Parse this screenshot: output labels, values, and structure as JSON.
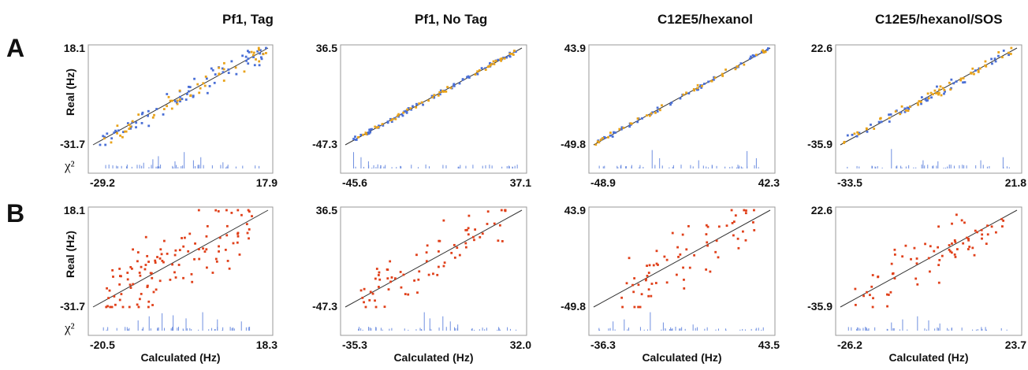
{
  "figure": {
    "panel_titles": [
      "Pf1, Tag",
      "Pf1, No Tag",
      "C12E5/hexanol",
      "C12E5/hexanol/SOS"
    ],
    "row_labels": [
      "A",
      "B"
    ],
    "ylabel": "Real (Hz)",
    "xlabel": "Calculated (Hz)",
    "chi_label": "χ²",
    "chi_superscript": "2",
    "colors": {
      "blue": "#4a6fd6",
      "orange": "#e8a21a",
      "red": "#e0401a",
      "line": "#333333",
      "frame": "#999999",
      "chi": "#6f8fe0"
    }
  },
  "chart_data": [
    {
      "type": "scatter",
      "row": "A",
      "title": "Pf1, Tag",
      "xlim": [
        -29.2,
        17.9
      ],
      "ylim": [
        -31.7,
        18.1
      ],
      "xticks": [
        "-29.2",
        "17.9"
      ],
      "yticks": [
        "18.1",
        "-31.7"
      ],
      "spread": 0.05,
      "series": [
        {
          "color": "blue",
          "count": 70
        },
        {
          "color": "orange",
          "count": 50
        }
      ],
      "chi_bars": [
        {
          "p": 0.3,
          "h": 0.28
        },
        {
          "p": 0.35,
          "h": 0.45
        },
        {
          "p": 0.38,
          "h": 0.6
        },
        {
          "p": 0.47,
          "h": 0.35
        },
        {
          "p": 0.52,
          "h": 0.8
        },
        {
          "p": 0.57,
          "h": 0.4
        },
        {
          "p": 0.61,
          "h": 0.55
        },
        {
          "p": 0.73,
          "h": 0.3
        }
      ]
    },
    {
      "type": "scatter",
      "row": "A",
      "title": "Pf1, No Tag",
      "xlim": [
        -45.6,
        37.1
      ],
      "ylim": [
        -47.3,
        36.5
      ],
      "xticks": [
        "-45.6",
        "37.1"
      ],
      "yticks": [
        "36.5",
        "-47.3"
      ],
      "spread": 0.012,
      "series": [
        {
          "color": "blue",
          "count": 70
        },
        {
          "color": "orange",
          "count": 50
        }
      ],
      "chi_bars": [
        {
          "p": 0.07,
          "h": 0.8
        },
        {
          "p": 0.11,
          "h": 0.55
        },
        {
          "p": 0.15,
          "h": 0.35
        },
        {
          "p": 0.2,
          "h": 0.2
        }
      ]
    },
    {
      "type": "scatter",
      "row": "A",
      "title": "C12E5/hexanol",
      "xlim": [
        -48.9,
        42.3
      ],
      "ylim": [
        -49.8,
        43.9
      ],
      "xticks": [
        "-48.9",
        "42.3"
      ],
      "yticks": [
        "43.9",
        "-49.8"
      ],
      "spread": 0.012,
      "series": [
        {
          "color": "blue",
          "count": 50
        },
        {
          "color": "orange",
          "count": 40
        }
      ],
      "chi_bars": [
        {
          "p": 0.34,
          "h": 0.9
        },
        {
          "p": 0.38,
          "h": 0.5
        },
        {
          "p": 0.59,
          "h": 0.4
        },
        {
          "p": 0.85,
          "h": 0.85
        },
        {
          "p": 0.9,
          "h": 0.5
        }
      ]
    },
    {
      "type": "scatter",
      "row": "A",
      "title": "C12E5/hexanol/SOS",
      "xlim": [
        -33.5,
        21.8
      ],
      "ylim": [
        -35.9,
        22.6
      ],
      "xticks": [
        "-33.5",
        "21.8"
      ],
      "yticks": [
        "22.6",
        "-35.9"
      ],
      "spread": 0.03,
      "series": [
        {
          "color": "blue",
          "count": 45
        },
        {
          "color": "orange",
          "count": 55
        }
      ],
      "chi_bars": [
        {
          "p": 0.3,
          "h": 0.95
        },
        {
          "p": 0.47,
          "h": 0.4
        },
        {
          "p": 0.55,
          "h": 0.35
        },
        {
          "p": 0.78,
          "h": 0.4
        },
        {
          "p": 0.9,
          "h": 0.55
        }
      ]
    },
    {
      "type": "scatter",
      "row": "B",
      "title": "",
      "xlim": [
        -20.5,
        18.3
      ],
      "ylim": [
        -31.7,
        18.1
      ],
      "xticks": [
        "-20.5",
        "18.3"
      ],
      "yticks": [
        "18.1",
        "-31.7"
      ],
      "spread": 0.17,
      "series": [
        {
          "color": "red",
          "count": 120
        }
      ],
      "chi_bars": [
        {
          "p": 0.27,
          "h": 0.5
        },
        {
          "p": 0.33,
          "h": 0.7
        },
        {
          "p": 0.4,
          "h": 0.85
        },
        {
          "p": 0.46,
          "h": 0.75
        },
        {
          "p": 0.53,
          "h": 0.6
        },
        {
          "p": 0.62,
          "h": 0.9
        },
        {
          "p": 0.7,
          "h": 0.55
        },
        {
          "p": 0.83,
          "h": 0.45
        }
      ]
    },
    {
      "type": "scatter",
      "row": "B",
      "title": "",
      "xlim": [
        -35.3,
        32.0
      ],
      "ylim": [
        -47.3,
        36.5
      ],
      "xticks": [
        "-35.3",
        "32.0"
      ],
      "yticks": [
        "36.5",
        "-47.3"
      ],
      "spread": 0.13,
      "series": [
        {
          "color": "red",
          "count": 75
        }
      ],
      "chi_bars": [
        {
          "p": 0.45,
          "h": 0.9
        },
        {
          "p": 0.48,
          "h": 0.6
        },
        {
          "p": 0.55,
          "h": 0.7
        },
        {
          "p": 0.59,
          "h": 0.45
        },
        {
          "p": 0.63,
          "h": 0.3
        }
      ]
    },
    {
      "type": "scatter",
      "row": "B",
      "title": "",
      "xlim": [
        -36.3,
        43.5
      ],
      "ylim": [
        -49.8,
        43.9
      ],
      "xticks": [
        "-36.3",
        "43.5"
      ],
      "yticks": [
        "43.9",
        "-49.8"
      ],
      "spread": 0.16,
      "series": [
        {
          "color": "red",
          "count": 70
        }
      ],
      "chi_bars": [
        {
          "p": 0.13,
          "h": 0.45
        },
        {
          "p": 0.19,
          "h": 0.55
        },
        {
          "p": 0.33,
          "h": 0.9
        },
        {
          "p": 0.4,
          "h": 0.4
        },
        {
          "p": 0.56,
          "h": 0.3
        }
      ]
    },
    {
      "type": "scatter",
      "row": "B",
      "title": "",
      "xlim": [
        -26.2,
        23.7
      ],
      "ylim": [
        -35.9,
        22.6
      ],
      "xticks": [
        "-26.2",
        "23.7"
      ],
      "yticks": [
        "22.6",
        "-35.9"
      ],
      "spread": 0.14,
      "series": [
        {
          "color": "red",
          "count": 75
        }
      ],
      "chi_bars": [
        {
          "p": 0.3,
          "h": 0.4
        },
        {
          "p": 0.36,
          "h": 0.55
        },
        {
          "p": 0.44,
          "h": 0.7
        },
        {
          "p": 0.5,
          "h": 0.5
        },
        {
          "p": 0.56,
          "h": 0.35
        }
      ]
    }
  ]
}
